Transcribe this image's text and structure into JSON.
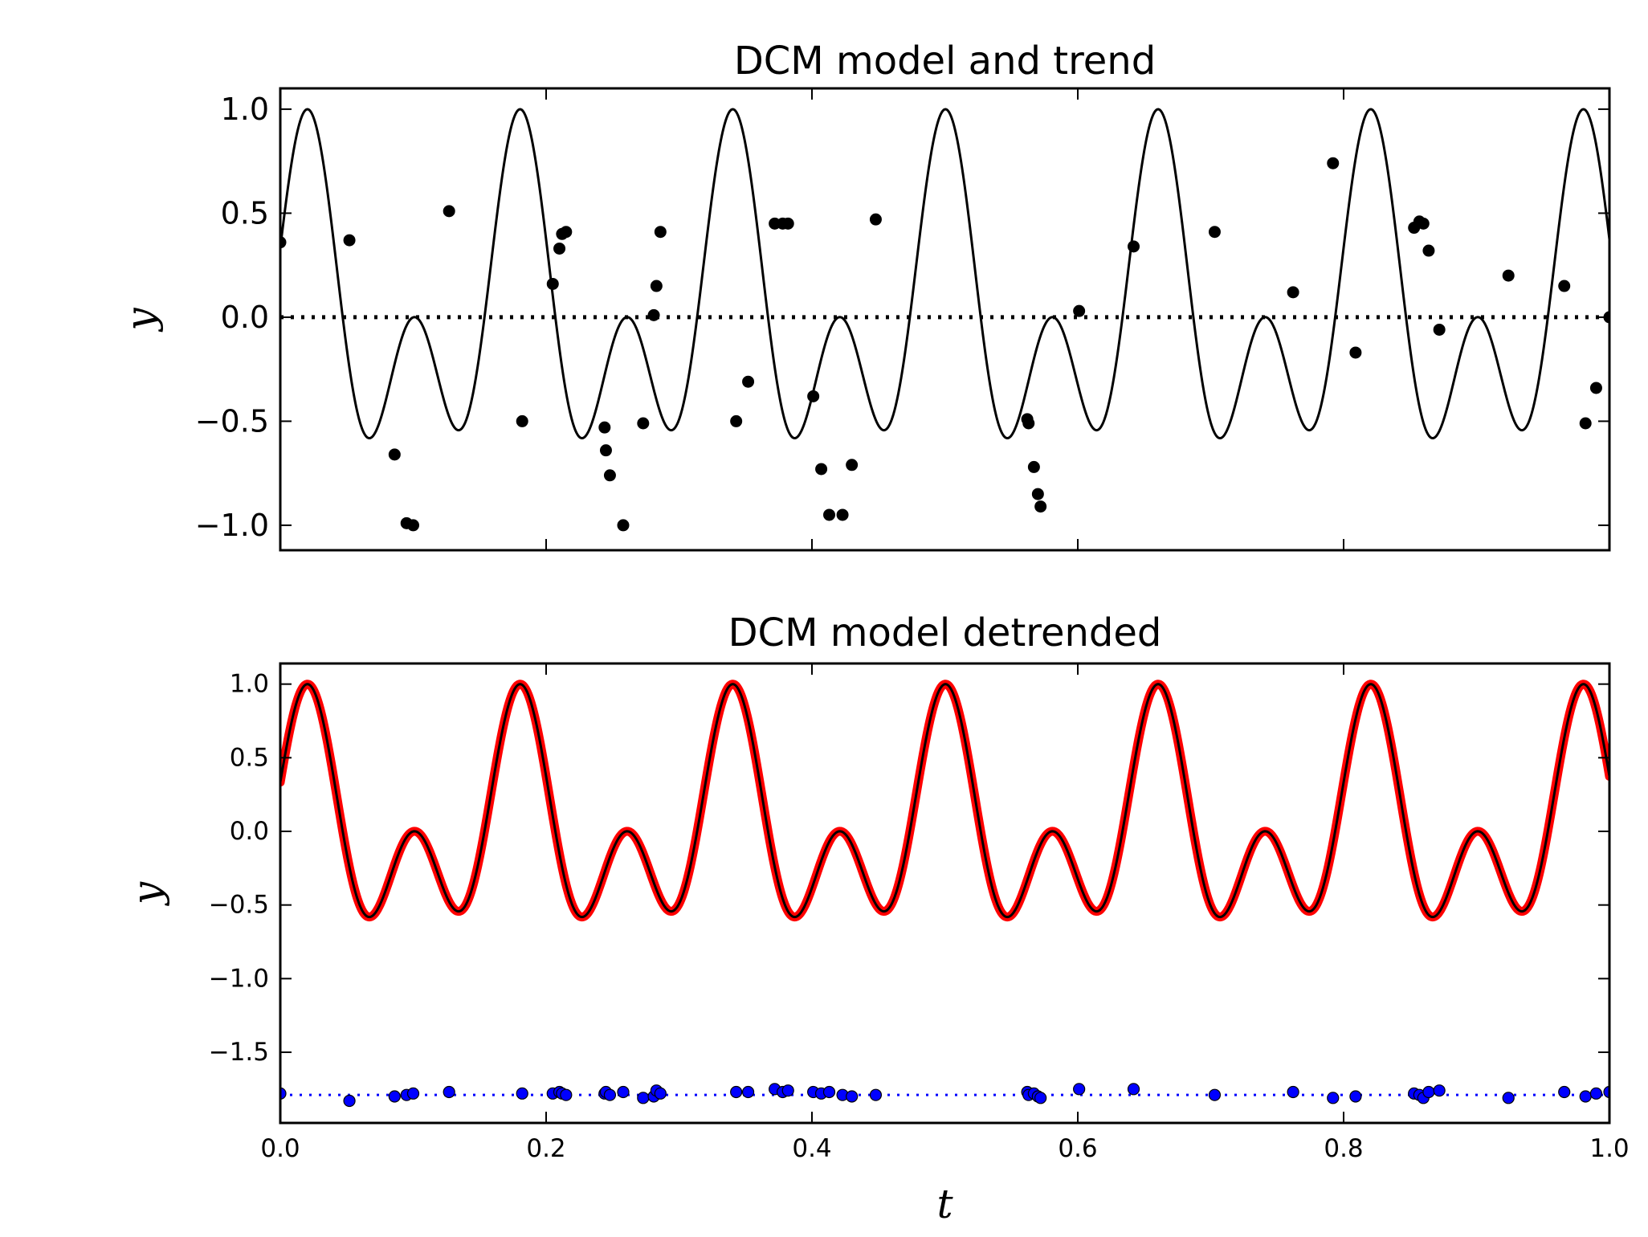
{
  "chart_data": [
    {
      "type": "line",
      "title": "DCM model and trend",
      "xlabel": "",
      "ylabel": "y",
      "xlim": [
        0.0,
        1.0
      ],
      "ylim": [
        -1.12,
        1.1
      ],
      "yticks": [
        1.0,
        0.5,
        0.0,
        -0.5,
        -1.0
      ],
      "ytick_labels": [
        "1.0",
        "0.5",
        "0.0",
        "−0.5",
        "−1.0"
      ],
      "show_xtick_labels": false,
      "model": "y = 0.5*(sin(2*pi*6.25*t + 0.8) + sin(2*pi*12.5*t - 0.05)) (period 0.16)",
      "series": [
        {
          "role": "model",
          "style": "solid",
          "color": "#000000"
        },
        {
          "role": "trend",
          "style": "dotted",
          "color": "#000000",
          "x": [
            0.0,
            1.0
          ],
          "y": [
            0.0,
            0.0
          ]
        },
        {
          "role": "observations",
          "style": "markers",
          "color": "#000000",
          "x": [
            0.0,
            0.052,
            0.086,
            0.095,
            0.1,
            0.127,
            0.182,
            0.205,
            0.21,
            0.212,
            0.215,
            0.244,
            0.245,
            0.248,
            0.258,
            0.273,
            0.281,
            0.283,
            0.286,
            0.343,
            0.352,
            0.372,
            0.378,
            0.382,
            0.401,
            0.407,
            0.413,
            0.423,
            0.43,
            0.448,
            0.562,
            0.563,
            0.567,
            0.57,
            0.572,
            0.601,
            0.642,
            0.703,
            0.762,
            0.792,
            0.809,
            0.853,
            0.857,
            0.86,
            0.864,
            0.872,
            0.924,
            0.966,
            0.982,
            0.99,
            1.0
          ],
          "y": [
            0.36,
            0.37,
            -0.66,
            -0.99,
            -1.0,
            0.51,
            -0.5,
            0.16,
            0.33,
            0.4,
            0.41,
            -0.53,
            -0.64,
            -0.76,
            -1.0,
            -0.51,
            0.01,
            0.15,
            0.41,
            -0.5,
            -0.31,
            0.45,
            0.45,
            0.45,
            -0.38,
            -0.73,
            -0.95,
            -0.95,
            -0.71,
            0.47,
            -0.49,
            -0.51,
            -0.72,
            -0.85,
            -0.91,
            0.03,
            0.34,
            0.41,
            0.12,
            0.74,
            -0.17,
            0.43,
            0.46,
            0.45,
            0.32,
            -0.06,
            0.2,
            0.15,
            -0.51,
            -0.34,
            0.0
          ]
        }
      ]
    },
    {
      "type": "line",
      "title": "DCM model detrended",
      "xlabel": "t",
      "ylabel": "y",
      "xlim": [
        0.0,
        1.0
      ],
      "ylim": [
        -1.98,
        1.14
      ],
      "yticks": [
        1.0,
        0.5,
        0.0,
        -0.5,
        -1.0,
        -1.5
      ],
      "ytick_labels": [
        "1.0",
        "0.5",
        "0.0",
        "−0.5",
        "−1.0",
        "−1.5"
      ],
      "xticks": [
        0.0,
        0.2,
        0.4,
        0.6,
        0.8,
        1.0
      ],
      "xtick_labels": [
        "0.0",
        "0.2",
        "0.4",
        "0.6",
        "0.8",
        "1.0"
      ],
      "series": [
        {
          "role": "detrended model",
          "style": "thick solid",
          "color": "#ff0000"
        },
        {
          "role": "model",
          "style": "solid",
          "color": "#000000"
        },
        {
          "role": "residual baseline",
          "style": "dotted",
          "color": "#0000ff",
          "x": [
            0.0,
            1.0
          ],
          "y": [
            -1.79,
            -1.79
          ]
        },
        {
          "role": "residuals",
          "style": "markers",
          "color": "#0000ff",
          "x": [
            0.0,
            0.052,
            0.086,
            0.095,
            0.1,
            0.127,
            0.182,
            0.205,
            0.21,
            0.212,
            0.215,
            0.244,
            0.245,
            0.248,
            0.258,
            0.273,
            0.281,
            0.283,
            0.286,
            0.343,
            0.352,
            0.372,
            0.378,
            0.382,
            0.401,
            0.407,
            0.413,
            0.423,
            0.43,
            0.448,
            0.562,
            0.563,
            0.567,
            0.57,
            0.572,
            0.601,
            0.642,
            0.703,
            0.762,
            0.792,
            0.809,
            0.853,
            0.857,
            0.86,
            0.864,
            0.872,
            0.924,
            0.966,
            0.982,
            0.99,
            1.0
          ],
          "y": [
            -1.78,
            -1.83,
            -1.8,
            -1.79,
            -1.78,
            -1.77,
            -1.78,
            -1.78,
            -1.77,
            -1.78,
            -1.79,
            -1.78,
            -1.77,
            -1.79,
            -1.77,
            -1.81,
            -1.8,
            -1.76,
            -1.78,
            -1.77,
            -1.77,
            -1.75,
            -1.77,
            -1.76,
            -1.77,
            -1.78,
            -1.77,
            -1.79,
            -1.8,
            -1.79,
            -1.77,
            -1.79,
            -1.78,
            -1.8,
            -1.81,
            -1.75,
            -1.75,
            -1.79,
            -1.77,
            -1.81,
            -1.8,
            -1.78,
            -1.79,
            -1.81,
            -1.77,
            -1.76,
            -1.81,
            -1.77,
            -1.8,
            -1.78,
            -1.77
          ]
        }
      ]
    }
  ]
}
